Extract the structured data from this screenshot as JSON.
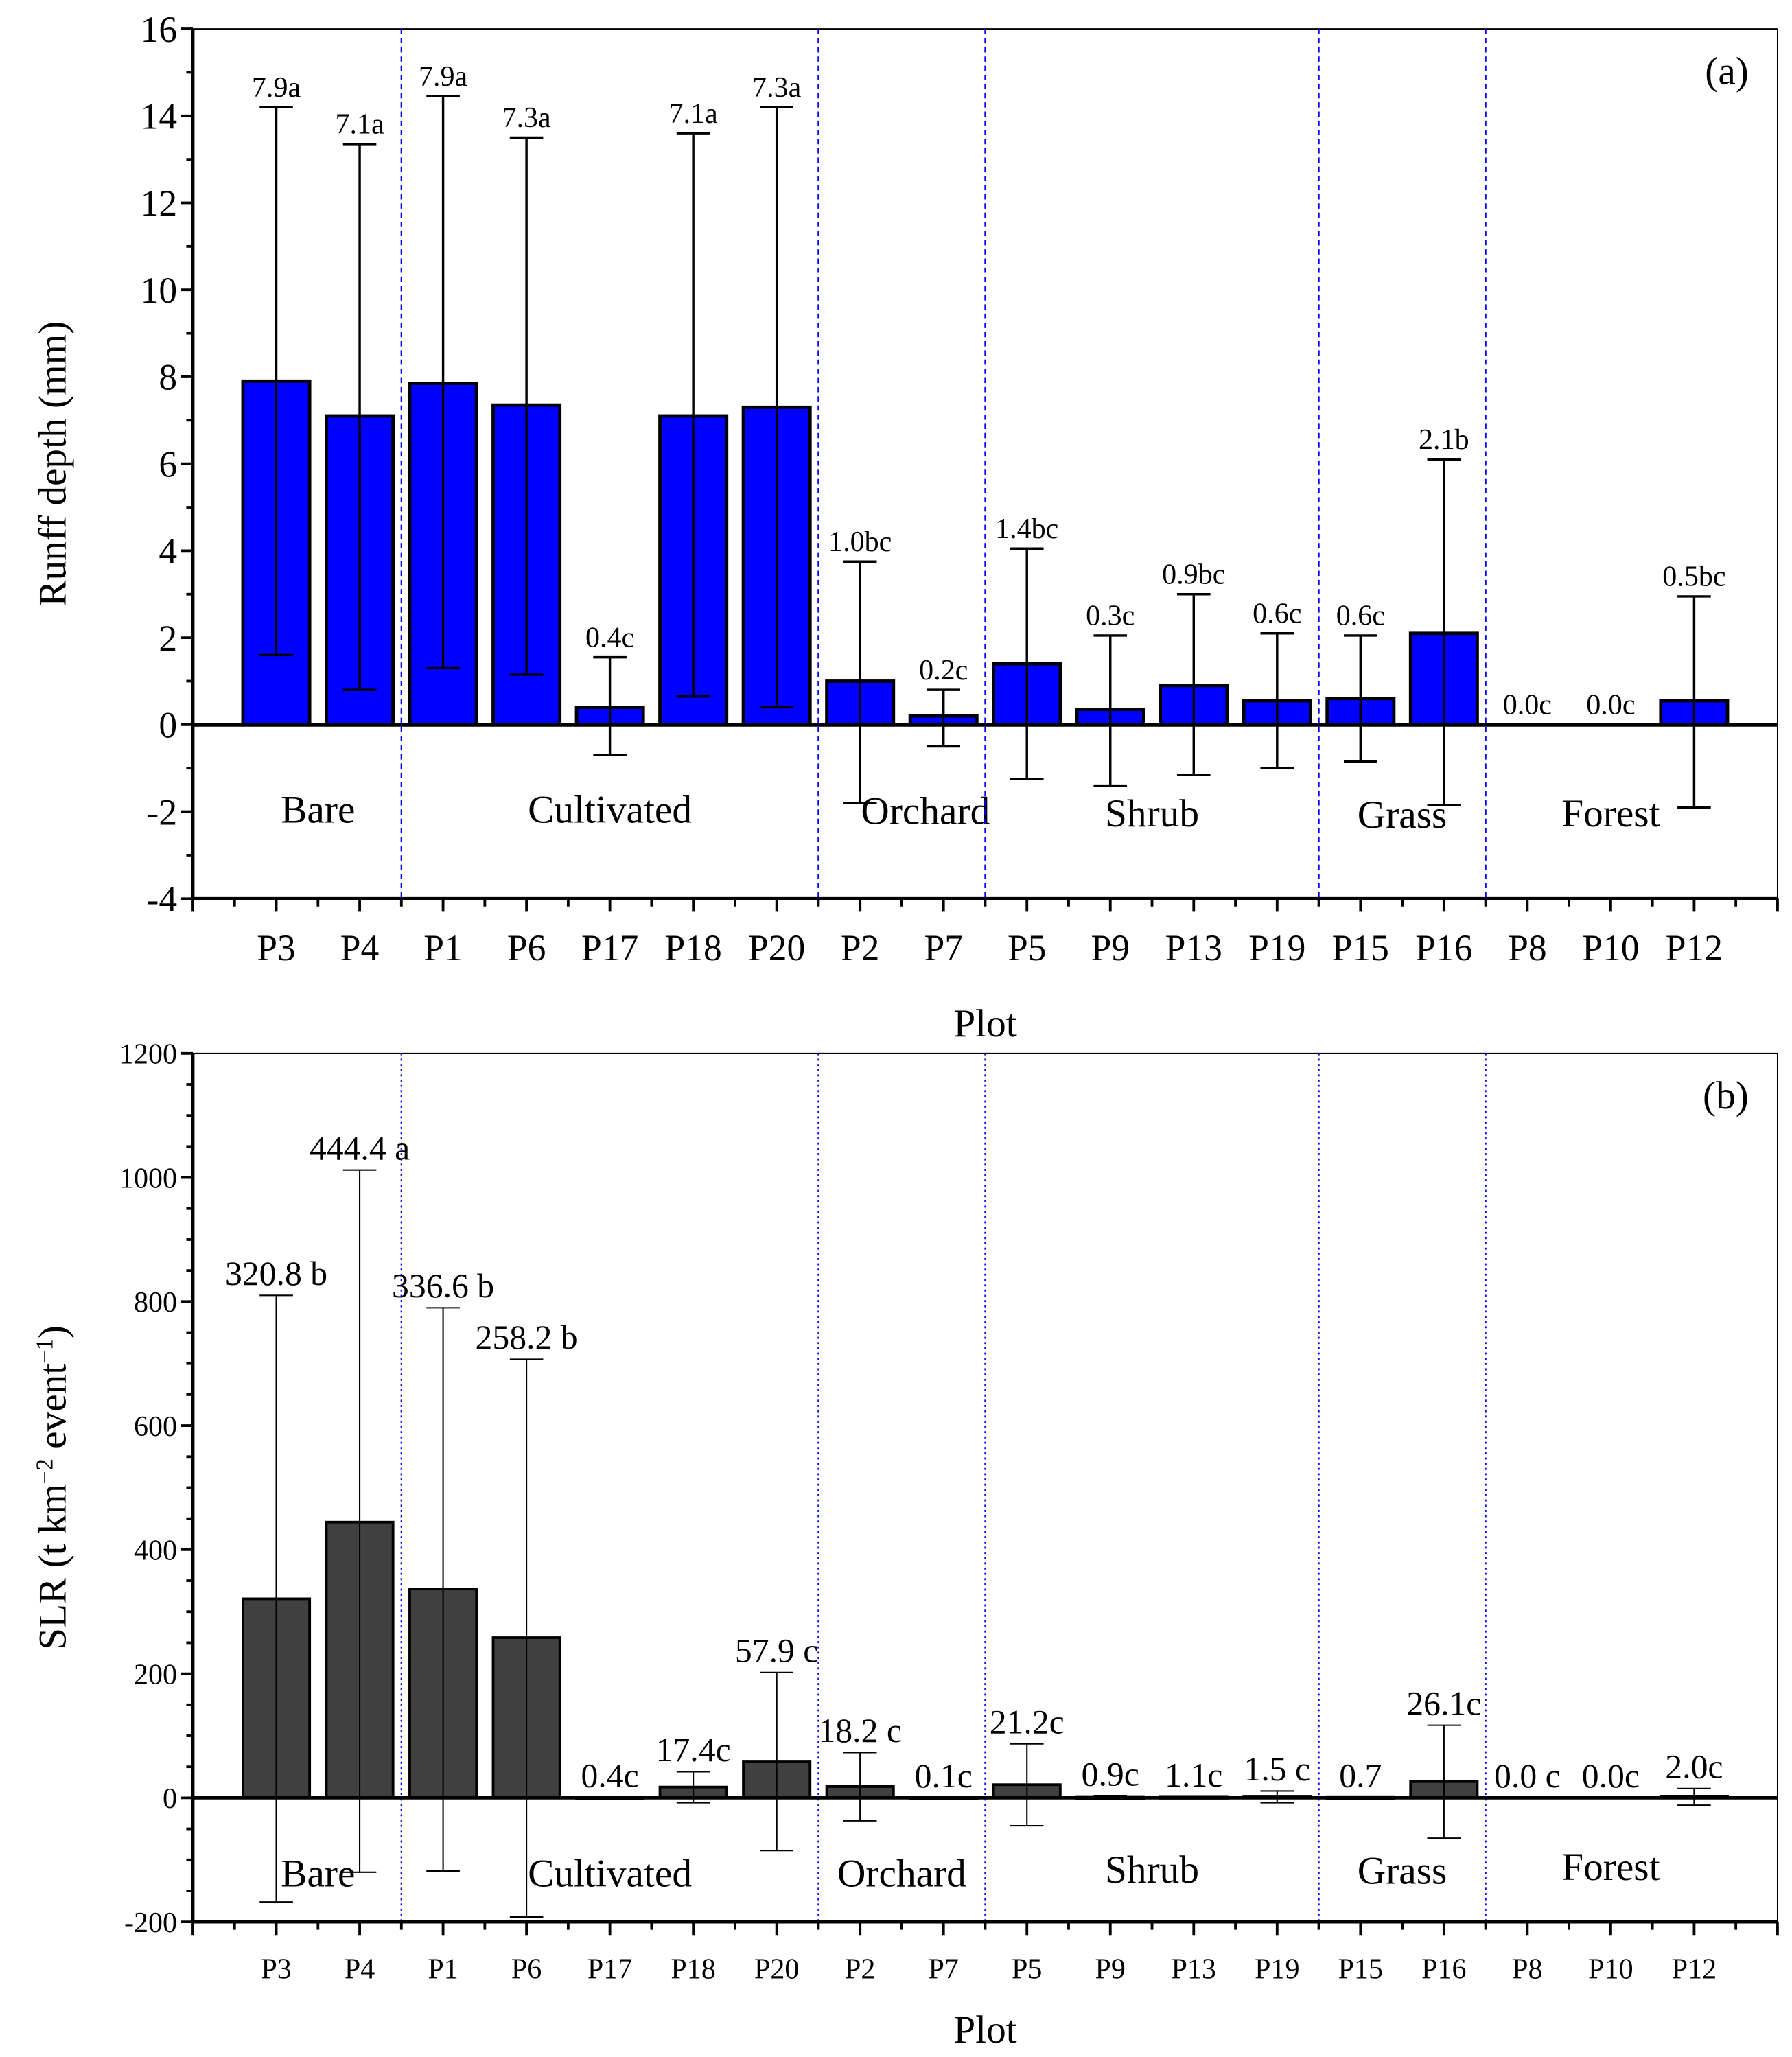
{
  "colors": {
    "panel_a_bar": "#0000FF",
    "panel_b_bar": "#404040",
    "divider": "#0000FF",
    "axis": "#000000"
  },
  "chart_data": [
    {
      "type": "bar",
      "panel_label": "(a)",
      "xlabel": "Plot",
      "ylabel": "Runff depth (mm)",
      "ylim": [
        -4,
        16
      ],
      "yticks": [
        -4,
        -2,
        0,
        2,
        4,
        6,
        8,
        10,
        12,
        14,
        16
      ],
      "categories": [
        "P3",
        "P4",
        "P1",
        "P6",
        "P17",
        "P18",
        "P20",
        "P2",
        "P7",
        "P5",
        "P9",
        "P13",
        "P19",
        "P15",
        "P16",
        "P8",
        "P10",
        "P12"
      ],
      "values": [
        7.9,
        7.1,
        7.85,
        7.35,
        0.4,
        7.1,
        7.3,
        1.0,
        0.2,
        1.4,
        0.35,
        0.9,
        0.55,
        0.6,
        2.1,
        0.0,
        0.0,
        0.55
      ],
      "error_upper": [
        14.2,
        13.35,
        14.45,
        13.5,
        1.55,
        13.6,
        14.2,
        3.75,
        0.8,
        4.05,
        2.05,
        3.0,
        2.1,
        2.05,
        6.1,
        null,
        null,
        2.95
      ],
      "error_lower": [
        1.6,
        0.8,
        1.3,
        1.15,
        -0.7,
        0.65,
        0.4,
        -1.8,
        -0.5,
        -1.25,
        -1.4,
        -1.15,
        -1.0,
        -0.85,
        -1.85,
        null,
        null,
        -1.9
      ],
      "data_labels": [
        "7.9a",
        "7.1a",
        "7.9a",
        "7.3a",
        "0.4c",
        "7.1a",
        "7.3a",
        "1.0bc",
        "0.2c",
        "1.4bc",
        "0.3c",
        "0.9bc",
        "0.6c",
        "0.6c",
        "2.1b",
        "0.0c",
        "0.0c",
        "0.5bc"
      ],
      "groups": [
        {
          "name": "Bare",
          "from": 0,
          "to": 1
        },
        {
          "name": "Cultivated",
          "from": 2,
          "to": 6
        },
        {
          "name": "Orchard",
          "from": 7,
          "to": 8
        },
        {
          "name": "Shrub",
          "from": 9,
          "to": 12
        },
        {
          "name": "Grass",
          "from": 13,
          "to": 14
        },
        {
          "name": "Forest",
          "from": 15,
          "to": 17
        }
      ]
    },
    {
      "type": "bar",
      "panel_label": "(b)",
      "xlabel": "Plot",
      "ylabel": "SLR (t km",
      "ylabel_sup1": "−2",
      "ylabel_mid": " event",
      "ylabel_sup2": "−1",
      "ylabel_end": ")",
      "ylim": [
        -200,
        1200
      ],
      "yticks": [
        -200,
        0,
        200,
        400,
        600,
        800,
        1000,
        1200
      ],
      "categories": [
        "P3",
        "P4",
        "P1",
        "P6",
        "P17",
        "P18",
        "P20",
        "P2",
        "P7",
        "P5",
        "P9",
        "P13",
        "P19",
        "P15",
        "P16",
        "P8",
        "P10",
        "P12"
      ],
      "values": [
        320.8,
        444.4,
        336.6,
        258.2,
        0.4,
        17.4,
        57.9,
        18.2,
        0.1,
        21.2,
        0.9,
        1.1,
        1.5,
        0.7,
        26.1,
        0.0,
        0.0,
        2.0
      ],
      "error_upper": [
        810,
        1012,
        790,
        707,
        null,
        42,
        202,
        73,
        null,
        87,
        3,
        null,
        11,
        null,
        117,
        null,
        null,
        15
      ],
      "error_lower": [
        -168,
        -120,
        -118,
        -192,
        null,
        -8,
        -85,
        -37,
        null,
        -45,
        -2,
        null,
        -8,
        null,
        -65,
        null,
        null,
        -12
      ],
      "data_labels": [
        "320.8 b",
        "444.4 a",
        "336.6 b",
        "258.2 b",
        "0.4c",
        "17.4c",
        "57.9 c",
        "18.2 c",
        "0.1c",
        "21.2c",
        "0.9c",
        "1.1c",
        "1.5 c",
        "0.7",
        "26.1c",
        "0.0 c",
        "0.0c",
        "2.0c"
      ],
      "groups": [
        {
          "name": "Bare",
          "from": 0,
          "to": 1
        },
        {
          "name": "Cultivated",
          "from": 2,
          "to": 6
        },
        {
          "name": "Orchard",
          "from": 7,
          "to": 8
        },
        {
          "name": "Shrub",
          "from": 9,
          "to": 12
        },
        {
          "name": "Grass",
          "from": 13,
          "to": 14
        },
        {
          "name": "Forest",
          "from": 15,
          "to": 17
        }
      ]
    }
  ]
}
